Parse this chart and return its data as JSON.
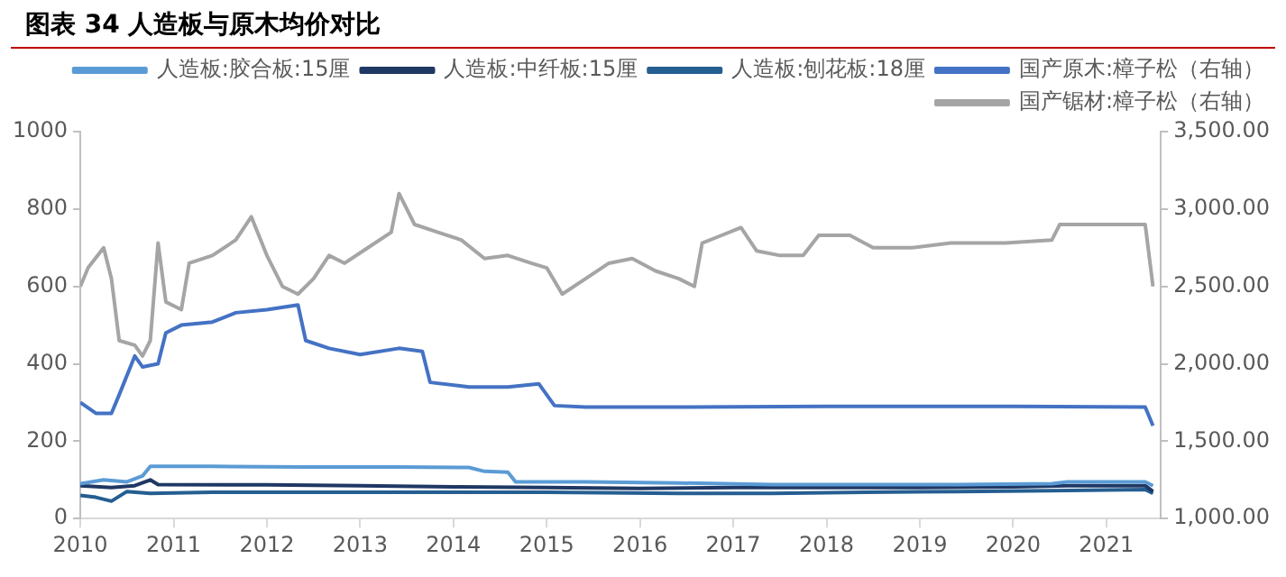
{
  "chart_data": {
    "type": "line",
    "title": "图表 34 人造板与原木均价对比",
    "xlim": [
      "2010",
      "2021-08"
    ],
    "xticks": [
      "2010",
      "2011",
      "2012",
      "2013",
      "2014",
      "2015",
      "2016",
      "2017",
      "2018",
      "2019",
      "2020",
      "2021"
    ],
    "ylim": [
      0,
      1000
    ],
    "yticks": [
      0,
      200,
      400,
      600,
      800,
      1000
    ],
    "y2lim": [
      1000,
      3500
    ],
    "y2ticks": [
      {
        "value": 1000,
        "label": "1,000.00"
      },
      {
        "value": 1500,
        "label": "1,500.00"
      },
      {
        "value": 2000,
        "label": "2,000.00"
      },
      {
        "value": 2500,
        "label": "2,500.00"
      },
      {
        "value": 3000,
        "label": "3,000.00"
      },
      {
        "value": 3500,
        "label": "3,500.00"
      }
    ],
    "grid": false,
    "legend": "top",
    "marker": "none",
    "line_style": "solid",
    "series": [
      {
        "name": "人造板:胶合板:15厘",
        "color": "#5b9bd5",
        "x": [
          "2010-01",
          "2010-04",
          "2010-07",
          "2010-09",
          "2010-10",
          "2011-06",
          "2012-06",
          "2013-06",
          "2014-03",
          "2014-05",
          "2014-08",
          "2014-09",
          "2015-06",
          "2016-06",
          "2017-06",
          "2018-06",
          "2019-06",
          "2020-06",
          "2020-08",
          "2021-06",
          "2021-07"
        ],
        "values": [
          90,
          100,
          95,
          110,
          135,
          135,
          133,
          133,
          132,
          122,
          120,
          95,
          95,
          92,
          88,
          88,
          88,
          90,
          95,
          95,
          85
        ]
      },
      {
        "name": "人造板:中纤板:15厘",
        "color": "#1f3864",
        "x": [
          "2010-01",
          "2010-05",
          "2010-08",
          "2010-10",
          "2010-11",
          "2012-01",
          "2013-01",
          "2014-01",
          "2015-01",
          "2016-01",
          "2017-01",
          "2018-01",
          "2019-01",
          "2020-01",
          "2020-08",
          "2021-06",
          "2021-07"
        ],
        "values": [
          85,
          80,
          85,
          100,
          88,
          87,
          85,
          82,
          80,
          78,
          80,
          80,
          80,
          82,
          85,
          85,
          70
        ]
      },
      {
        "name": "人造板:刨花板:18厘",
        "color": "#255e91",
        "x": [
          "2010-01",
          "2010-03",
          "2010-05",
          "2010-07",
          "2010-10",
          "2011-06",
          "2013-01",
          "2015-01",
          "2016-06",
          "2017-06",
          "2018-06",
          "2019-06",
          "2020-06",
          "2021-06",
          "2021-07"
        ],
        "values": [
          60,
          55,
          45,
          70,
          65,
          68,
          68,
          68,
          65,
          65,
          68,
          70,
          72,
          75,
          65
        ]
      },
      {
        "name": "国产原木:樟子松（右轴）",
        "color": "#4472c4",
        "axis": "y2",
        "x": [
          "2010-01",
          "2010-03",
          "2010-05",
          "2010-06",
          "2010-08",
          "2010-09",
          "2010-11",
          "2010-12",
          "2011-02",
          "2011-06",
          "2011-09",
          "2012-01",
          "2012-05",
          "2012-06",
          "2012-09",
          "2013-01",
          "2013-06",
          "2013-09",
          "2013-10",
          "2014-03",
          "2014-08",
          "2014-12",
          "2015-02",
          "2015-06",
          "2016-06",
          "2018-01",
          "2020-01",
          "2021-06",
          "2021-07"
        ],
        "values": [
          1750,
          1680,
          1680,
          1800,
          2050,
          1980,
          2000,
          2200,
          2250,
          2270,
          2330,
          2350,
          2380,
          2150,
          2100,
          2060,
          2100,
          2080,
          1880,
          1850,
          1850,
          1870,
          1730,
          1720,
          1720,
          1725,
          1725,
          1720,
          1600
        ]
      },
      {
        "name": "国产锯材:樟子松（右轴）",
        "color": "#a5a5a5",
        "axis": "y2",
        "x": [
          "2010-01",
          "2010-02",
          "2010-04",
          "2010-05",
          "2010-06",
          "2010-08",
          "2010-09",
          "2010-10",
          "2010-11",
          "2010-12",
          "2011-02",
          "2011-03",
          "2011-06",
          "2011-09",
          "2011-11",
          "2012-01",
          "2012-03",
          "2012-05",
          "2012-07",
          "2012-09",
          "2012-11",
          "2013-02",
          "2013-05",
          "2013-06",
          "2013-08",
          "2013-11",
          "2014-02",
          "2014-05",
          "2014-08",
          "2014-11",
          "2015-01",
          "2015-03",
          "2015-06",
          "2015-09",
          "2015-12",
          "2016-03",
          "2016-06",
          "2016-08",
          "2016-09",
          "2016-11",
          "2017-02",
          "2017-04",
          "2017-07",
          "2017-10",
          "2017-12",
          "2018-04",
          "2018-07",
          "2018-12",
          "2019-05",
          "2019-12",
          "2020-06",
          "2020-07",
          "2021-01",
          "2021-06",
          "2021-07"
        ],
        "values": [
          2500,
          2620,
          2750,
          2550,
          2150,
          2120,
          2050,
          2150,
          2780,
          2400,
          2350,
          2650,
          2700,
          2800,
          2950,
          2700,
          2500,
          2450,
          2550,
          2700,
          2650,
          2750,
          2850,
          3100,
          2900,
          2850,
          2800,
          2680,
          2700,
          2650,
          2620,
          2450,
          2550,
          2650,
          2680,
          2600,
          2550,
          2500,
          2780,
          2820,
          2880,
          2730,
          2700,
          2700,
          2830,
          2830,
          2750,
          2750,
          2780,
          2780,
          2800,
          2900,
          2900,
          2900,
          2500
        ]
      }
    ]
  }
}
